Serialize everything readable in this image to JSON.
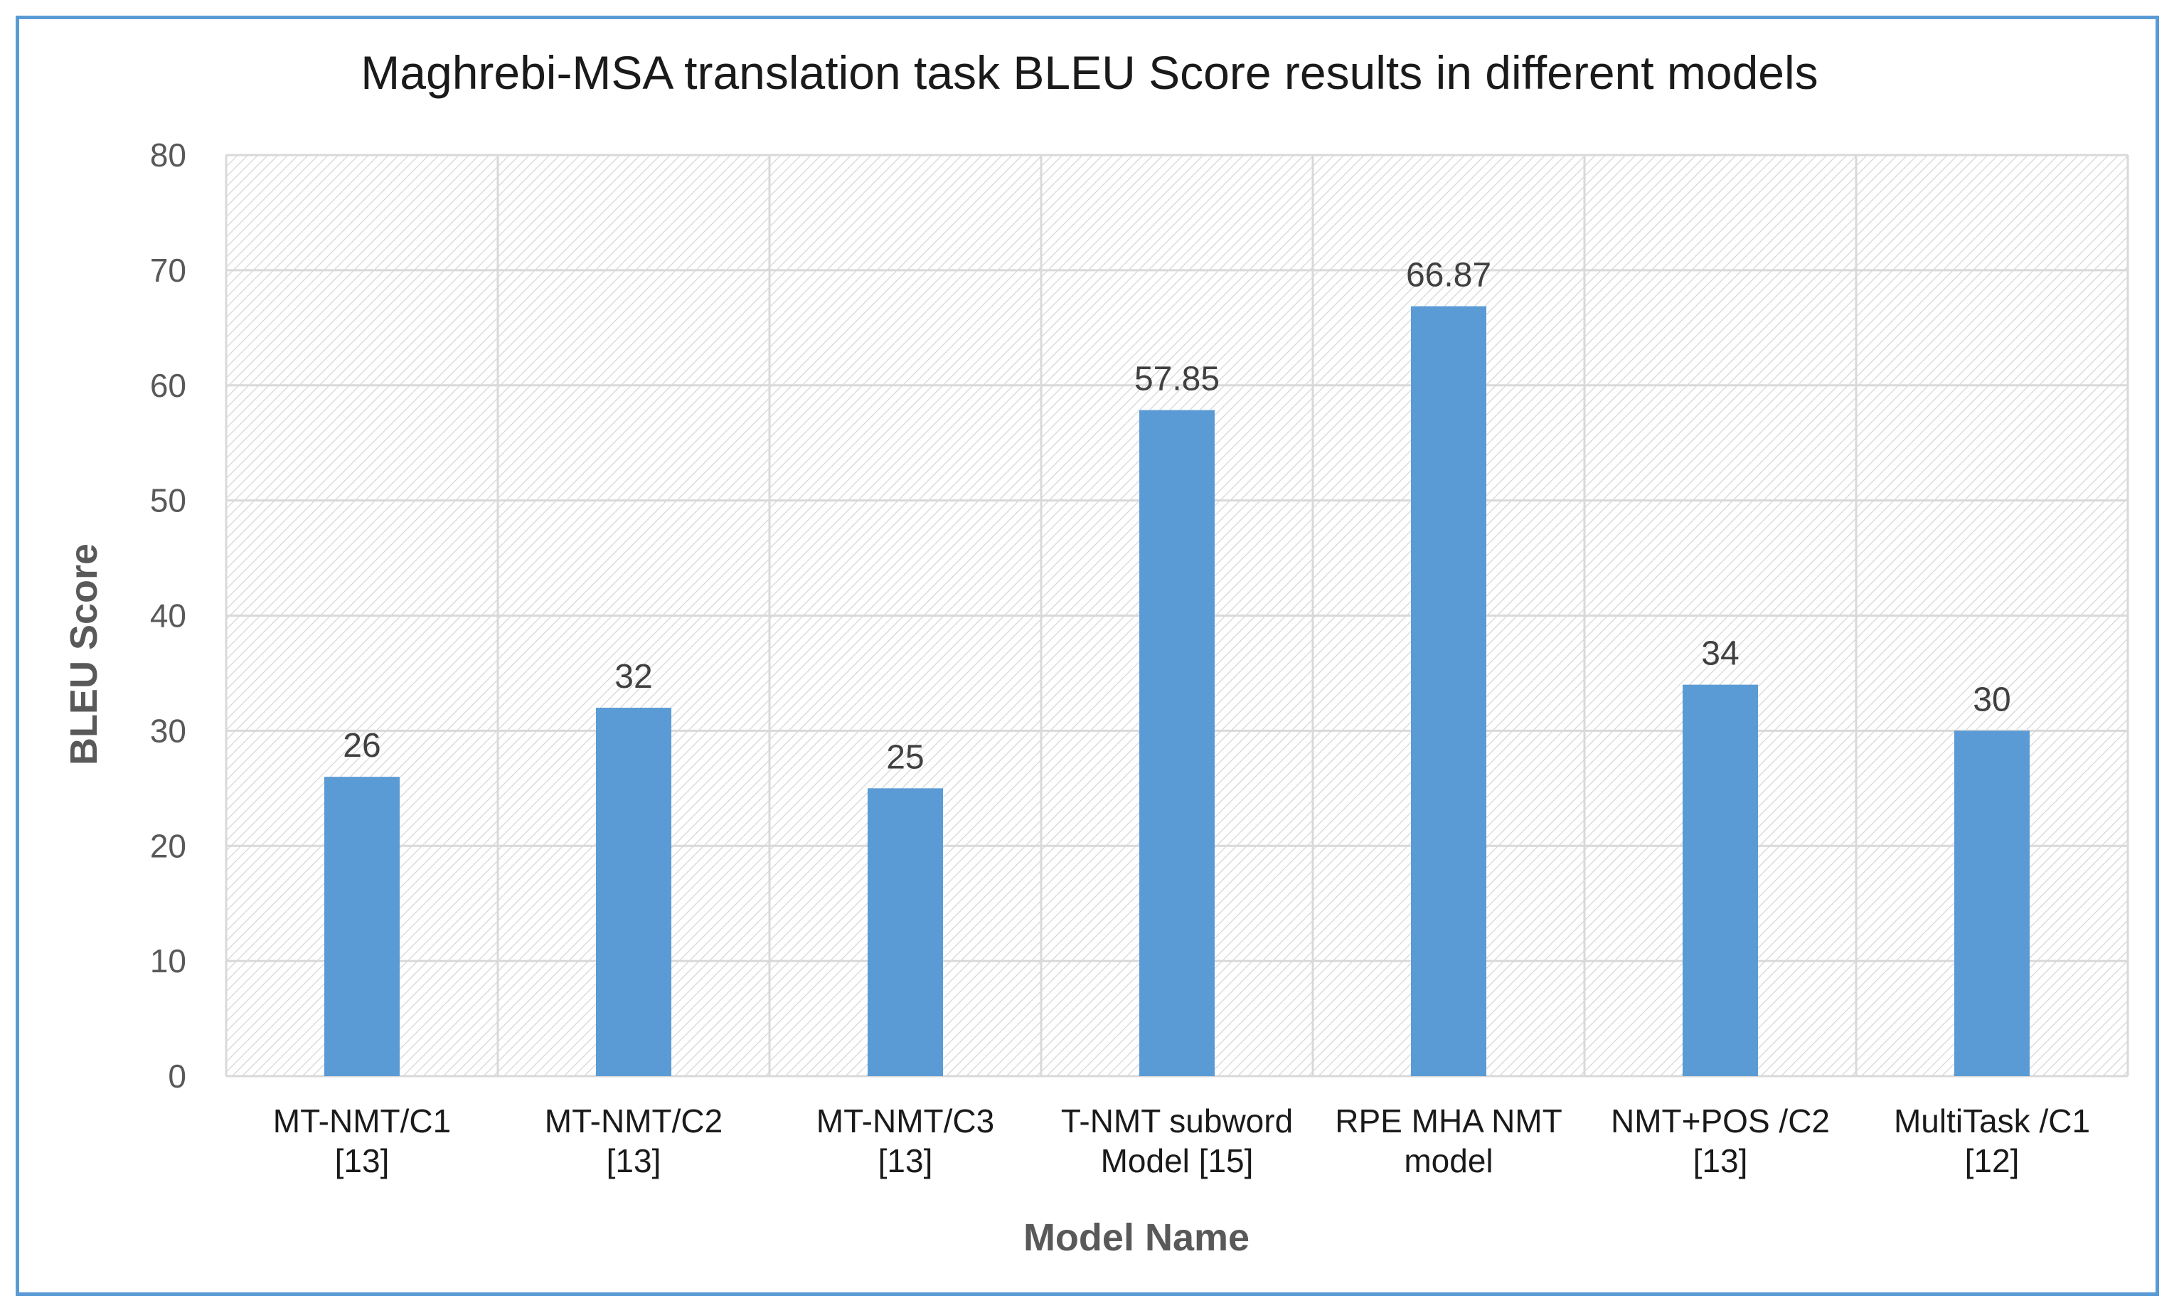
{
  "chart_data": {
    "type": "bar",
    "title": "Maghrebi-MSA translation task BLEU Score results in different models",
    "xlabel": "Model Name",
    "ylabel": "BLEU Score",
    "ylim": [
      0,
      80
    ],
    "yticks": [
      0,
      10,
      20,
      30,
      40,
      50,
      60,
      70,
      80
    ],
    "categories": [
      [
        "MT-NMT/C1",
        "[13]"
      ],
      [
        "MT-NMT/C2",
        "[13]"
      ],
      [
        "MT-NMT/C3",
        "[13]"
      ],
      [
        "T-NMT subword",
        "Model [15]"
      ],
      [
        "RPE MHA NMT",
        "model"
      ],
      [
        "NMT+POS /C2",
        "[13]"
      ],
      [
        "MultiTask /C1",
        "[12]"
      ]
    ],
    "values": [
      26,
      32,
      25,
      57.85,
      66.87,
      34,
      30
    ],
    "data_labels": [
      "26",
      "32",
      "25",
      "57.85",
      "66.87",
      "34",
      "30"
    ],
    "grid": true,
    "colors": {
      "bar": "#5b9bd5",
      "frame": "#5b9bd5",
      "grid": "#d9d9d9",
      "hatch": "#d4d4d4"
    }
  }
}
